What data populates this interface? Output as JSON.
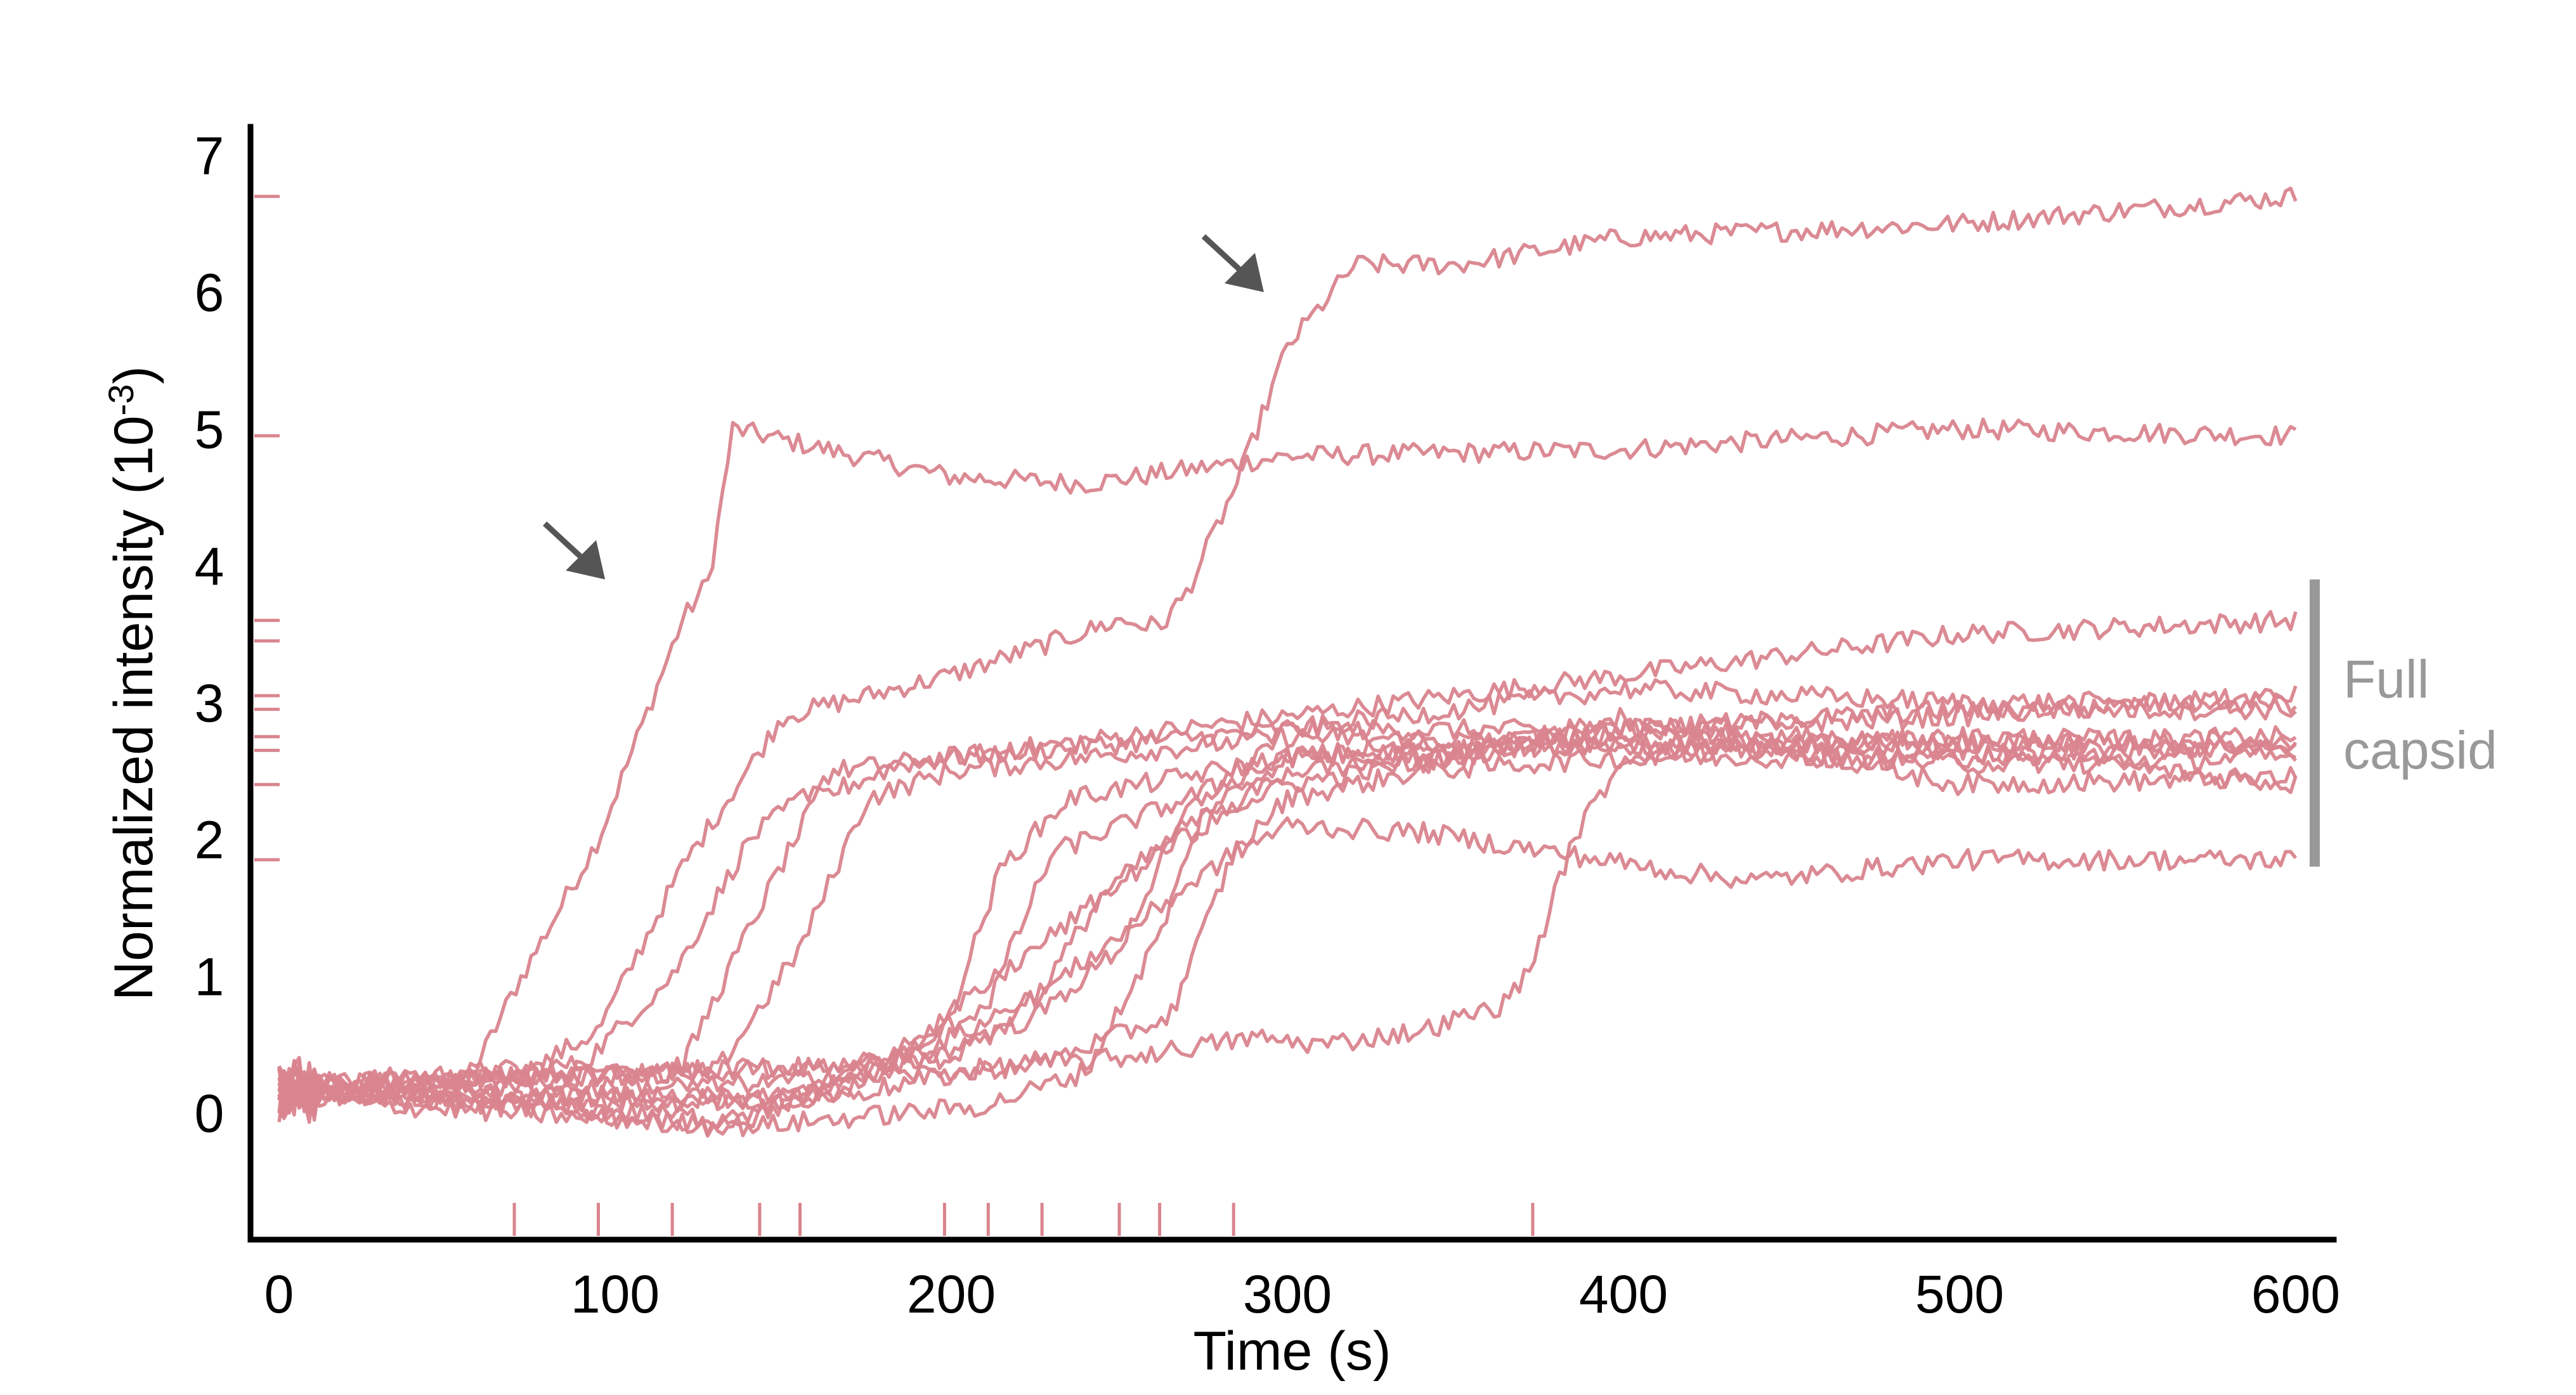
{
  "chart_data": {
    "type": "line",
    "xlabel": "Time (s)",
    "ylabel": "Normalized intensity (10",
    "ylabel_exponent": "-3",
    "ylabel_close": ")",
    "xlim": [
      -5,
      605
    ],
    "ylim": [
      -0.8,
      7.3
    ],
    "xticks": [
      0,
      100,
      200,
      300,
      400,
      500,
      600
    ],
    "yticks": [
      0,
      1,
      2,
      3,
      4,
      5,
      6,
      7
    ],
    "xtick_labels": [
      "0",
      "100",
      "200",
      "300",
      "400",
      "500",
      "600"
    ],
    "ytick_labels": [
      "0",
      "1",
      "2",
      "3",
      "4",
      "5",
      "6",
      "7"
    ],
    "grid": false,
    "series_color": "#d9848e",
    "annotation_color": "#999999",
    "arrow_color": "#555555",
    "bracket": {
      "label_line1": "Full",
      "label_line2": "capsid",
      "y_range": [
        1.8,
        3.9
      ]
    },
    "arrows": [
      {
        "tip": [
          97,
          3.9
        ]
      },
      {
        "tip": [
          293,
          6.0
        ]
      }
    ],
    "onset_ticks_x": [
      70,
      95,
      117,
      143,
      155,
      198,
      211,
      227,
      250,
      262,
      284,
      373
    ],
    "final_level_ticks_y": [
      6.7,
      4.95,
      3.6,
      3.45,
      3.05,
      2.95,
      2.75,
      2.65,
      2.4,
      1.85
    ],
    "series": [
      {
        "onset": 70,
        "values_x": [
          0,
          55,
          70,
          95,
          120,
          128,
          135,
          200,
          240,
          300,
          400,
          500,
          600
        ],
        "values_y": [
          0.15,
          0.15,
          0.9,
          2.0,
          3.6,
          3.9,
          5.0,
          4.65,
          4.6,
          4.8,
          4.85,
          5.0,
          4.95
        ]
      },
      {
        "onset": 95,
        "values_x": [
          0,
          70,
          95,
          120,
          150,
          200,
          250,
          262,
          270,
          285,
          300,
          320,
          350,
          400,
          500,
          600
        ],
        "values_y": [
          0.15,
          0.25,
          0.6,
          1.8,
          2.9,
          3.2,
          3.6,
          3.55,
          3.8,
          4.6,
          5.6,
          6.2,
          6.2,
          6.4,
          6.5,
          6.7
        ]
      },
      {
        "onset": 117,
        "values_x": [
          0,
          90,
          117,
          140,
          165,
          200,
          300,
          400,
          500,
          600
        ],
        "values_y": [
          0.2,
          0.35,
          1.0,
          2.0,
          2.5,
          2.6,
          2.9,
          3.2,
          3.5,
          3.6
        ]
      },
      {
        "onset": 143,
        "values_x": [
          0,
          120,
          143,
          160,
          185,
          200,
          300,
          400,
          500,
          600
        ],
        "values_y": [
          0.2,
          0.35,
          1.5,
          2.3,
          2.55,
          2.6,
          2.8,
          2.8,
          2.7,
          2.75
        ]
      },
      {
        "onset": 155,
        "values_x": [
          0,
          130,
          155,
          175,
          200,
          300,
          400,
          500,
          600
        ],
        "values_y": [
          0.2,
          0.3,
          1.2,
          2.3,
          2.5,
          2.75,
          2.7,
          2.65,
          2.4
        ]
      },
      {
        "onset": 198,
        "values_x": [
          0,
          130,
          170,
          198,
          215,
          235,
          300,
          400,
          500,
          600
        ],
        "values_y": [
          0.2,
          -0.1,
          0.3,
          0.6,
          1.8,
          2.3,
          2.6,
          2.8,
          2.9,
          3.05
        ]
      },
      {
        "onset": 211,
        "values_x": [
          0,
          140,
          190,
          211,
          230,
          250,
          300,
          400,
          500,
          600
        ],
        "values_y": [
          0.15,
          -0.05,
          0.5,
          0.8,
          1.9,
          2.1,
          2.6,
          2.7,
          2.7,
          2.65
        ]
      },
      {
        "onset": 227,
        "values_x": [
          0,
          150,
          205,
          227,
          245,
          270,
          300,
          400,
          500,
          600
        ],
        "values_y": [
          0.15,
          0.05,
          0.6,
          0.9,
          1.6,
          2.1,
          2.4,
          2.8,
          2.95,
          2.95
        ]
      },
      {
        "onset": 250,
        "values_x": [
          0,
          160,
          225,
          250,
          270,
          300,
          400,
          500,
          600
        ],
        "values_y": [
          0.15,
          0.1,
          0.7,
          1.2,
          2.2,
          2.8,
          3.1,
          3.0,
          3.0
        ]
      },
      {
        "onset": 262,
        "values_x": [
          0,
          140,
          210,
          240,
          262,
          275,
          300,
          400,
          500,
          600
        ],
        "values_y": [
          0.1,
          -0.1,
          0.05,
          0.3,
          1.3,
          2.2,
          2.6,
          2.7,
          2.55,
          2.6
        ]
      },
      {
        "onset": 284,
        "values_x": [
          0,
          160,
          230,
          265,
          284,
          300,
          340,
          400,
          500,
          600
        ],
        "values_y": [
          0.15,
          0.1,
          0.4,
          0.7,
          1.9,
          2.3,
          2.5,
          2.6,
          2.6,
          2.7
        ]
      },
      {
        "onset": 373,
        "values_x": [
          0,
          130,
          200,
          250,
          290,
          310,
          340,
          365,
          373,
          385,
          400,
          500,
          600
        ],
        "values_y": [
          0.15,
          0.2,
          0.3,
          0.4,
          0.55,
          0.5,
          0.6,
          0.8,
          1.1,
          2.0,
          2.6,
          2.75,
          2.7
        ]
      },
      {
        "onset": 284,
        "values_x": [
          0,
          200,
          284,
          300,
          340,
          380,
          420,
          440,
          500,
          600
        ],
        "values_y": [
          0.15,
          0.4,
          1.9,
          2.1,
          2.05,
          1.9,
          1.75,
          1.7,
          1.85,
          1.85
        ]
      },
      {
        "onset": 262,
        "values_x": [
          0,
          180,
          262,
          300,
          350,
          400,
          500,
          600
        ],
        "values_y": [
          0.2,
          0.35,
          1.9,
          2.5,
          2.6,
          2.9,
          2.4,
          2.45
        ]
      }
    ]
  }
}
